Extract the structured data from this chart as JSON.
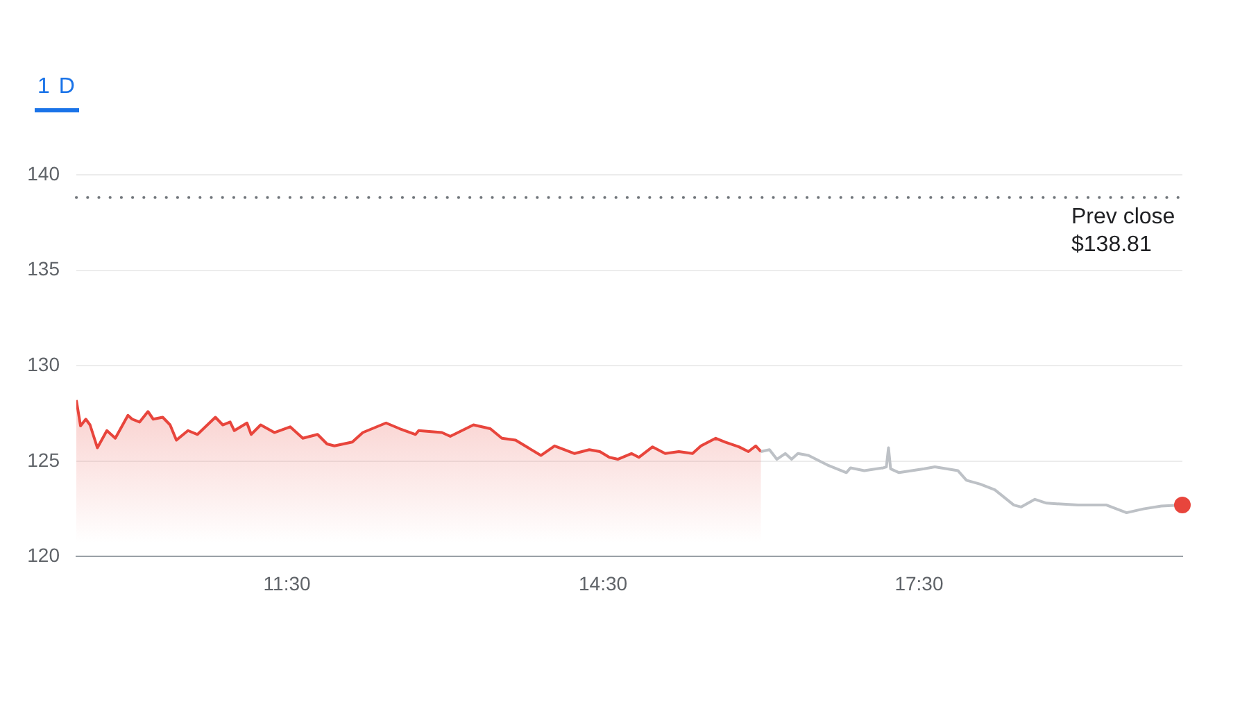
{
  "chart_data": {
    "type": "line",
    "annotations": [
      "1 D"
    ],
    "xlim": [
      9.5,
      20
    ],
    "xticks": [
      {
        "value": 11.5,
        "label": "11:30"
      },
      {
        "value": 14.5,
        "label": "14:30"
      },
      {
        "value": 17.5,
        "label": "17:30"
      }
    ],
    "ylim": [
      120,
      140
    ],
    "yticks": [
      120,
      125,
      130,
      135,
      140
    ],
    "grid": "y",
    "legend": false,
    "ref_lines": [
      {
        "axis": "y",
        "value": 138.81,
        "label": "Prev close\n$138.81",
        "color": "#70757a",
        "line_style": "dotted"
      }
    ],
    "series": [
      {
        "type": "area",
        "color": "#e8453c",
        "x": [
          9.5,
          9.54,
          9.59,
          9.63,
          9.7,
          9.79,
          9.87,
          9.99,
          10.03,
          10.1,
          10.18,
          10.23,
          10.32,
          10.39,
          10.45,
          10.56,
          10.65,
          10.82,
          10.89,
          10.96,
          11.0,
          11.12,
          11.16,
          11.25,
          11.38,
          11.53,
          11.65,
          11.79,
          11.88,
          11.95,
          12.12,
          12.22,
          12.44,
          12.57,
          12.72,
          12.75,
          12.97,
          13.05,
          13.27,
          13.43,
          13.54,
          13.67,
          13.91,
          14.04,
          14.23,
          14.37,
          14.47,
          14.56,
          14.64,
          14.77,
          14.84,
          14.97,
          15.09,
          15.22,
          15.35,
          15.43,
          15.57,
          15.66,
          15.79,
          15.88,
          15.95,
          16.0
        ],
        "values": [
          128.2,
          126.85,
          127.2,
          126.9,
          125.7,
          126.6,
          126.2,
          127.4,
          127.2,
          127.05,
          127.6,
          127.2,
          127.3,
          126.9,
          126.1,
          126.6,
          126.4,
          127.3,
          126.9,
          127.05,
          126.6,
          127.0,
          126.4,
          126.9,
          126.5,
          126.8,
          126.2,
          126.4,
          125.9,
          125.8,
          126.0,
          126.5,
          127.0,
          126.7,
          126.4,
          126.6,
          126.5,
          126.3,
          126.9,
          126.7,
          126.2,
          126.1,
          125.3,
          125.8,
          125.4,
          125.6,
          125.5,
          125.2,
          125.1,
          125.4,
          125.2,
          125.75,
          125.4,
          125.5,
          125.4,
          125.8,
          126.2,
          126.0,
          125.75,
          125.5,
          125.8,
          125.5
        ]
      },
      {
        "type": "line",
        "color": "#bdc1c6",
        "x": [
          16.0,
          16.08,
          16.15,
          16.23,
          16.29,
          16.35,
          16.45,
          16.63,
          16.81,
          16.85,
          16.98,
          17.16,
          17.19,
          17.21,
          17.23,
          17.31,
          17.55,
          17.65,
          17.87,
          17.95,
          18.08,
          18.22,
          18.4,
          18.47,
          18.6,
          18.71,
          19.01,
          19.28,
          19.47,
          19.63,
          19.8,
          20.0
        ],
        "values": [
          125.5,
          125.6,
          125.1,
          125.4,
          125.1,
          125.4,
          125.3,
          124.8,
          124.4,
          124.65,
          124.5,
          124.65,
          124.7,
          125.7,
          124.6,
          124.4,
          124.6,
          124.7,
          124.5,
          124.0,
          123.8,
          123.5,
          122.7,
          122.6,
          123.0,
          122.8,
          122.7,
          122.7,
          122.3,
          122.5,
          122.65,
          122.7
        ]
      },
      {
        "type": "scatter",
        "marker": "circle",
        "color": "#e8453c",
        "x": [
          20.0
        ],
        "values": [
          122.7
        ]
      }
    ]
  }
}
